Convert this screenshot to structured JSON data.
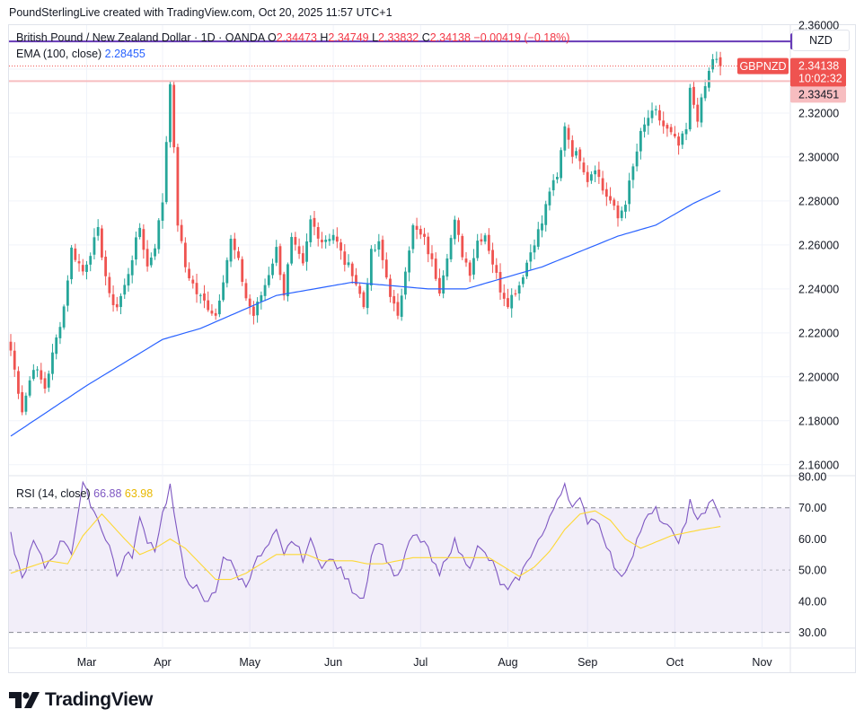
{
  "credit": "PoundSterlingLive created with TradingView.com, Oct 20, 2025 11:57 UTC+1",
  "legend": {
    "symbol": "British Pound / New Zealand Dollar · 1D · OANDA",
    "o_label": "O",
    "o": "2.34473",
    "h_label": "H",
    "h": "2.34749",
    "l_label": "L",
    "l": "2.33832",
    "c_label": "C",
    "c": "2.34138",
    "change": "−0.00419 (−0.18%)",
    "ema_label": "EMA (100, close)",
    "ema_value": "2.28455",
    "rsi_label": "RSI (14, close)",
    "rsi_value": "66.88",
    "rsi_ma_value": "63.98"
  },
  "currency_button": "NZD",
  "brand": "TradingView",
  "price_tags": {
    "resistance": "2.35262",
    "symbol_tag": "GBPNZD",
    "last_price": "2.34138",
    "countdown": "10:02:32",
    "support": "2.33451"
  },
  "colors": {
    "up": "#26a69a",
    "down": "#ef5350",
    "ema": "#2962ff",
    "rsi": "#7e57c2",
    "rsi_ma": "#fdd835",
    "resistance": "#673ab7",
    "support": "#f7bdc0"
  },
  "chart_data": [
    {
      "type": "candlestick",
      "title": "British Pound / New Zealand Dollar · 1D · OANDA",
      "ylim": [
        2.155,
        2.36
      ],
      "y_ticks": [
        "2.36000",
        "2.34000",
        "2.32000",
        "2.30000",
        "2.28000",
        "2.26000",
        "2.24000",
        "2.22000",
        "2.20000",
        "2.18000",
        "2.16000"
      ],
      "x_ticks": [
        "Mar",
        "Apr",
        "May",
        "Jun",
        "Jul",
        "Aug",
        "Sep",
        "Oct",
        "Nov"
      ],
      "horizontal_lines": [
        2.35262,
        2.33451
      ],
      "last_price": 2.34138,
      "anchors": [
        [
          0,
          2.212
        ],
        [
          3,
          2.185
        ],
        [
          6,
          2.205
        ],
        [
          9,
          2.195
        ],
        [
          14,
          2.232
        ],
        [
          16,
          2.258
        ],
        [
          19,
          2.248
        ],
        [
          23,
          2.266
        ],
        [
          26,
          2.236
        ],
        [
          28,
          2.232
        ],
        [
          30,
          2.241
        ],
        [
          34,
          2.268
        ],
        [
          36,
          2.25
        ],
        [
          38,
          2.26
        ],
        [
          40,
          2.28
        ],
        [
          42,
          2.335
        ],
        [
          44,
          2.27
        ],
        [
          46,
          2.25
        ],
        [
          49,
          2.238
        ],
        [
          51,
          2.234
        ],
        [
          54,
          2.228
        ],
        [
          56,
          2.245
        ],
        [
          58,
          2.262
        ],
        [
          60,
          2.252
        ],
        [
          62,
          2.236
        ],
        [
          64,
          2.228
        ],
        [
          67,
          2.242
        ],
        [
          70,
          2.258
        ],
        [
          72,
          2.238
        ],
        [
          74,
          2.262
        ],
        [
          77,
          2.25
        ],
        [
          79,
          2.271
        ],
        [
          82,
          2.262
        ],
        [
          85,
          2.265
        ],
        [
          88,
          2.252
        ],
        [
          90,
          2.248
        ],
        [
          93,
          2.232
        ],
        [
          95,
          2.256
        ],
        [
          97,
          2.26
        ],
        [
          100,
          2.238
        ],
        [
          102,
          2.226
        ],
        [
          104,
          2.25
        ],
        [
          106,
          2.268
        ],
        [
          109,
          2.262
        ],
        [
          111,
          2.252
        ],
        [
          113,
          2.24
        ],
        [
          115,
          2.256
        ],
        [
          117,
          2.27
        ],
        [
          119,
          2.256
        ],
        [
          121,
          2.248
        ],
        [
          123,
          2.262
        ],
        [
          125,
          2.265
        ],
        [
          127,
          2.252
        ],
        [
          129,
          2.24
        ],
        [
          131,
          2.234
        ],
        [
          134,
          2.242
        ],
        [
          136,
          2.252
        ],
        [
          138,
          2.262
        ],
        [
          140,
          2.27
        ],
        [
          142,
          2.285
        ],
        [
          144,
          2.29
        ],
        [
          146,
          2.315
        ],
        [
          148,
          2.302
        ],
        [
          150,
          2.3
        ],
        [
          152,
          2.29
        ],
        [
          154,
          2.296
        ],
        [
          156,
          2.285
        ],
        [
          158,
          2.28
        ],
        [
          160,
          2.272
        ],
        [
          162,
          2.28
        ],
        [
          164,
          2.295
        ],
        [
          166,
          2.31
        ],
        [
          168,
          2.318
        ],
        [
          170,
          2.32
        ],
        [
          172,
          2.314
        ],
        [
          174,
          2.31
        ],
        [
          176,
          2.305
        ],
        [
          178,
          2.312
        ],
        [
          179,
          2.33
        ],
        [
          181,
          2.318
        ],
        [
          183,
          2.332
        ],
        [
          185,
          2.345
        ],
        [
          187,
          2.342
        ]
      ],
      "ema100_anchors": [
        [
          0,
          2.173
        ],
        [
          20,
          2.196
        ],
        [
          40,
          2.217
        ],
        [
          50,
          2.222
        ],
        [
          70,
          2.237
        ],
        [
          90,
          2.243
        ],
        [
          110,
          2.24
        ],
        [
          120,
          2.24
        ],
        [
          140,
          2.25
        ],
        [
          160,
          2.264
        ],
        [
          170,
          2.269
        ],
        [
          180,
          2.279
        ],
        [
          187,
          2.2846
        ]
      ]
    },
    {
      "type": "line",
      "title": "RSI (14, close)",
      "ylim": [
        25,
        80
      ],
      "y_ticks": [
        "80.00",
        "70.00",
        "60.00",
        "50.00",
        "40.00",
        "30.00"
      ],
      "bands": [
        30,
        70
      ],
      "midline": 50,
      "series": [
        {
          "name": "RSI",
          "anchors": [
            [
              0,
              61
            ],
            [
              3,
              47
            ],
            [
              6,
              59
            ],
            [
              9,
              51
            ],
            [
              14,
              60
            ],
            [
              16,
              56
            ],
            [
              18,
              70
            ],
            [
              19,
              77
            ],
            [
              21,
              72
            ],
            [
              23,
              66
            ],
            [
              26,
              58
            ],
            [
              28,
              48
            ],
            [
              30,
              54
            ],
            [
              32,
              55
            ],
            [
              34,
              66
            ],
            [
              36,
              60
            ],
            [
              38,
              57
            ],
            [
              40,
              68
            ],
            [
              42,
              77
            ],
            [
              44,
              60
            ],
            [
              46,
              48
            ],
            [
              49,
              44
            ],
            [
              51,
              39
            ],
            [
              54,
              43
            ],
            [
              56,
              55
            ],
            [
              58,
              52
            ],
            [
              60,
              48
            ],
            [
              62,
              45
            ],
            [
              64,
              52
            ],
            [
              67,
              56
            ],
            [
              70,
              62
            ],
            [
              72,
              54
            ],
            [
              74,
              60
            ],
            [
              77,
              54
            ],
            [
              79,
              59
            ],
            [
              82,
              52
            ],
            [
              85,
              53
            ],
            [
              88,
              48
            ],
            [
              90,
              44
            ],
            [
              93,
              41
            ],
            [
              95,
              55
            ],
            [
              97,
              60
            ],
            [
              100,
              51
            ],
            [
              102,
              47
            ],
            [
              104,
              55
            ],
            [
              106,
              61
            ],
            [
              109,
              59
            ],
            [
              111,
              53
            ],
            [
              113,
              48
            ],
            [
              115,
              55
            ],
            [
              117,
              59
            ],
            [
              119,
              54
            ],
            [
              121,
              52
            ],
            [
              123,
              57
            ],
            [
              125,
              55
            ],
            [
              127,
              52
            ],
            [
              129,
              46
            ],
            [
              131,
              43
            ],
            [
              134,
              48
            ],
            [
              136,
              52
            ],
            [
              138,
              58
            ],
            [
              140,
              61
            ],
            [
              142,
              66
            ],
            [
              144,
              73
            ],
            [
              146,
              78
            ],
            [
              148,
              70
            ],
            [
              150,
              72
            ],
            [
              152,
              66
            ],
            [
              154,
              67
            ],
            [
              156,
              62
            ],
            [
              158,
              55
            ],
            [
              160,
              48
            ],
            [
              162,
              50
            ],
            [
              164,
              56
            ],
            [
              166,
              63
            ],
            [
              168,
              67
            ],
            [
              170,
              69
            ],
            [
              172,
              65
            ],
            [
              174,
              62
            ],
            [
              176,
              60
            ],
            [
              178,
              64
            ],
            [
              179,
              72
            ],
            [
              181,
              67
            ],
            [
              183,
              69
            ],
            [
              185,
              72
            ],
            [
              187,
              66.88
            ]
          ]
        },
        {
          "name": "RSI-based MA",
          "anchors": [
            [
              0,
              49
            ],
            [
              10,
              53
            ],
            [
              15,
              52
            ],
            [
              19,
              61
            ],
            [
              24,
              68
            ],
            [
              30,
              60
            ],
            [
              34,
              55
            ],
            [
              38,
              57
            ],
            [
              42,
              60
            ],
            [
              46,
              57
            ],
            [
              50,
              52
            ],
            [
              54,
              47
            ],
            [
              58,
              47
            ],
            [
              62,
              49
            ],
            [
              66,
              52
            ],
            [
              70,
              55
            ],
            [
              74,
              55
            ],
            [
              78,
              55
            ],
            [
              82,
              53
            ],
            [
              86,
              53
            ],
            [
              90,
              53
            ],
            [
              94,
              52
            ],
            [
              98,
              52
            ],
            [
              102,
              53
            ],
            [
              106,
              54
            ],
            [
              110,
              54
            ],
            [
              114,
              54
            ],
            [
              118,
              54
            ],
            [
              122,
              54
            ],
            [
              126,
              54
            ],
            [
              130,
              51
            ],
            [
              134,
              48
            ],
            [
              138,
              51
            ],
            [
              142,
              56
            ],
            [
              146,
              63
            ],
            [
              150,
              68
            ],
            [
              154,
              69
            ],
            [
              158,
              66
            ],
            [
              162,
              60
            ],
            [
              166,
              57
            ],
            [
              170,
              59
            ],
            [
              174,
              61
            ],
            [
              178,
              62
            ],
            [
              182,
              63
            ],
            [
              187,
              63.98
            ]
          ]
        }
      ]
    }
  ]
}
